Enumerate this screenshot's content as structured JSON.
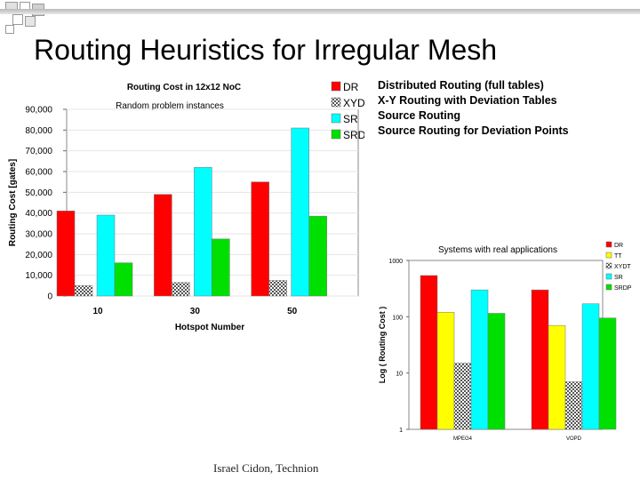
{
  "slide": {
    "title": "Routing Heuristics for Irregular Mesh",
    "legend_descriptions": [
      "Distributed Routing (full tables)",
      "X-Y Routing with Deviation Tables",
      "Source Routing",
      "Source Routing for Deviation Points"
    ],
    "footer": "Israel Cidon, Technion"
  },
  "chart_data": [
    {
      "type": "bar",
      "title": "Routing Cost in 12x12 NoC",
      "subtitle": "Random problem instances",
      "xlabel": "Hotspot Number",
      "ylabel": "Routing Cost [gates]",
      "categories": [
        "10",
        "30",
        "50"
      ],
      "ylim": [
        0,
        90000
      ],
      "yticks": [
        "0",
        "10,000",
        "20,000",
        "30,000",
        "40,000",
        "50,000",
        "60,000",
        "70,000",
        "80,000",
        "90,000"
      ],
      "legend_position": "top-right",
      "series": [
        {
          "name": "DR",
          "color": "#ff0000",
          "values": [
            41000,
            49000,
            55000
          ]
        },
        {
          "name": "XYDT",
          "color": "#c8c8c8",
          "pattern": "checker",
          "values": [
            5000,
            6500,
            7500
          ]
        },
        {
          "name": "SR",
          "color": "#00ffff",
          "values": [
            39000,
            62000,
            81000
          ]
        },
        {
          "name": "SRDP",
          "color": "#00e000",
          "values": [
            16000,
            27500,
            38500
          ]
        }
      ]
    },
    {
      "type": "bar",
      "title": "Systems with real applications",
      "xlabel": "",
      "ylabel": "Log ( Routing Cost )",
      "scale": "log",
      "categories": [
        "MPEG4",
        "VOPD"
      ],
      "ylim": [
        1,
        1000
      ],
      "yticks": [
        "1",
        "10",
        "100",
        "1000"
      ],
      "legend_position": "right",
      "series": [
        {
          "name": "DR",
          "color": "#ff0000",
          "values": [
            540,
            300
          ]
        },
        {
          "name": "TT",
          "color": "#ffff00",
          "values": [
            120,
            70
          ]
        },
        {
          "name": "XYDT",
          "color": "#c8c8c8",
          "pattern": "checker",
          "values": [
            15,
            7
          ]
        },
        {
          "name": "SR",
          "color": "#00ffff",
          "values": [
            300,
            170
          ]
        },
        {
          "name": "SRDP",
          "color": "#00e000",
          "values": [
            115,
            95
          ]
        }
      ]
    }
  ]
}
